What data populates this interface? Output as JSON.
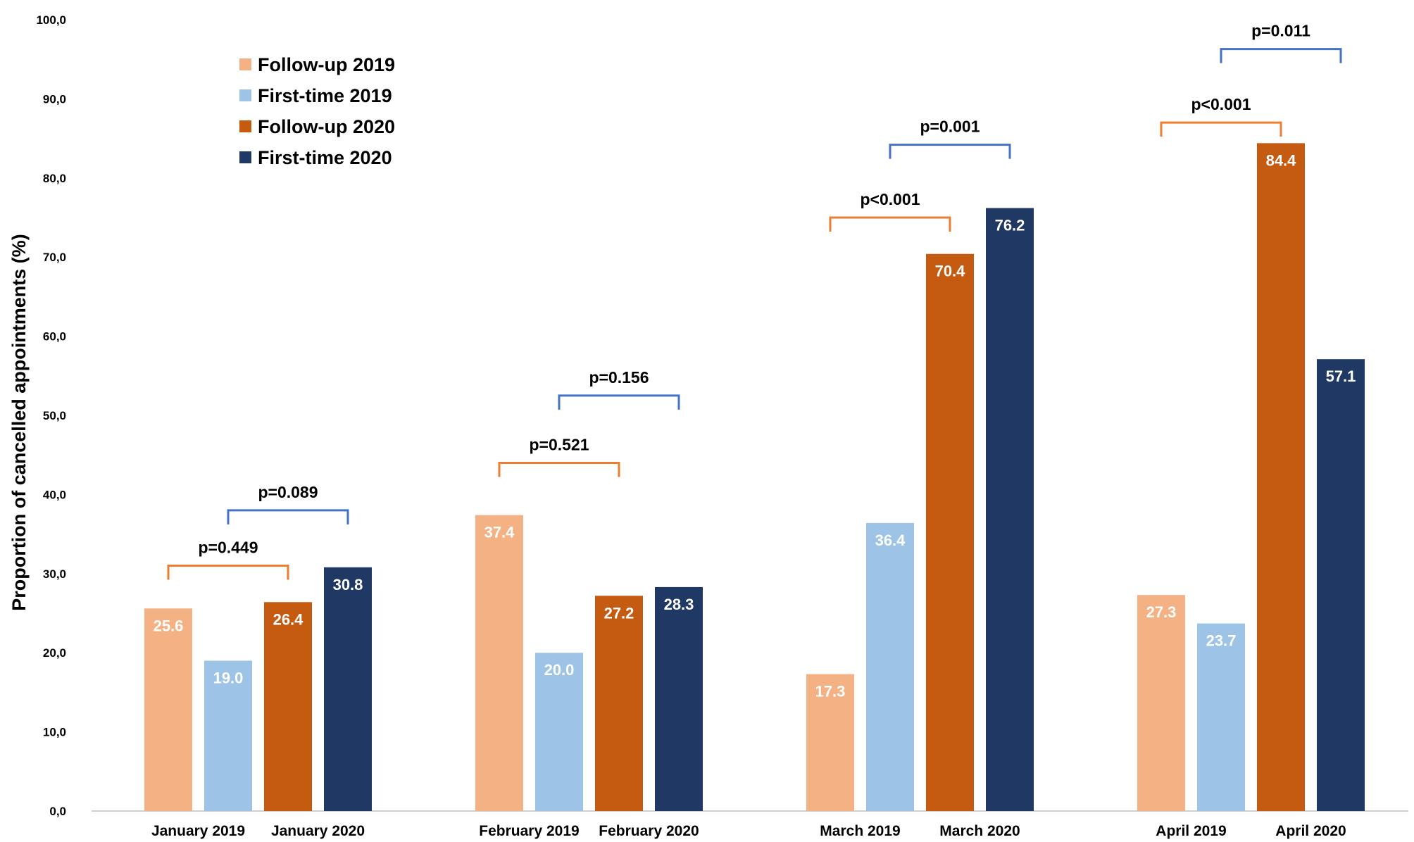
{
  "chart_data": {
    "type": "bar",
    "title": "",
    "xlabel": "",
    "ylabel": "Proportion of cancelled appointments (%)",
    "ylim": [
      0,
      100
    ],
    "yticks": [
      "0,0",
      "10,0",
      "20,0",
      "30,0",
      "40,0",
      "50,0",
      "60,0",
      "70,0",
      "80,0",
      "90,0",
      "100,0"
    ],
    "months": [
      "January",
      "February",
      "March",
      "April"
    ],
    "category_labels": [
      "January 2019",
      "January 2020",
      "February 2019",
      "February 2020",
      "March 2019",
      "March 2020",
      "April 2019",
      "April 2020"
    ],
    "legend_position": "top-left",
    "series": [
      {
        "name": "Follow-up 2019",
        "color": "#F4B183",
        "values": [
          25.6,
          37.4,
          17.3,
          27.3
        ],
        "labels": [
          "25.6",
          "37.4",
          "17.3",
          "27.3"
        ]
      },
      {
        "name": "First-time  2019",
        "color": "#9DC3E6",
        "values": [
          19.0,
          20.0,
          36.4,
          23.7
        ],
        "labels": [
          "19.0",
          "20.0",
          "36.4",
          "23.7"
        ]
      },
      {
        "name": "Follow-up 2020",
        "color": "#C55A11",
        "values": [
          26.4,
          27.2,
          70.4,
          84.4
        ],
        "labels": [
          "26.4",
          "27.2",
          "70.4",
          "84.4"
        ]
      },
      {
        "name": "First-time 2020",
        "color": "#1F3864",
        "values": [
          30.8,
          28.3,
          76.2,
          57.1
        ],
        "labels": [
          "30.8",
          "28.3",
          "76.2",
          "57.1"
        ]
      }
    ],
    "annotations": [
      {
        "month": 0,
        "type": "follow-up",
        "text": "p=0.449",
        "level": 31.0,
        "color": "#ED7D31"
      },
      {
        "month": 0,
        "type": "first-time",
        "text": "p=0.089",
        "level": 38.0,
        "color": "#4472C4"
      },
      {
        "month": 1,
        "type": "follow-up",
        "text": "p=0.521",
        "level": 44.0,
        "color": "#ED7D31"
      },
      {
        "month": 1,
        "type": "first-time",
        "text": "p=0.156",
        "level": 52.5,
        "color": "#4472C4"
      },
      {
        "month": 2,
        "type": "follow-up",
        "text": "p<0.001",
        "level": 75.0,
        "color": "#ED7D31"
      },
      {
        "month": 2,
        "type": "first-time",
        "text": "p=0.001",
        "level": 84.2,
        "color": "#4472C4"
      },
      {
        "month": 3,
        "type": "follow-up",
        "text": "p<0.001",
        "level": 87.0,
        "color": "#ED7D31"
      },
      {
        "month": 3,
        "type": "first-time",
        "text": "p=0.011",
        "level": 96.3,
        "color": "#4472C4"
      }
    ]
  }
}
